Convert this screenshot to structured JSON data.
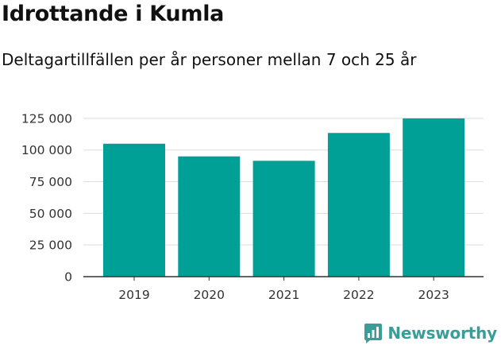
{
  "chart_data": {
    "type": "bar",
    "title": "Idrottande i Kumla",
    "subtitle": "Deltagartillfällen per år personer mellan 7 och 25 år",
    "categories": [
      "2019",
      "2020",
      "2021",
      "2022",
      "2023"
    ],
    "values": [
      105000,
      95000,
      91500,
      113500,
      125000
    ],
    "ylim": [
      0,
      135000
    ],
    "yticks": [
      0,
      25000,
      50000,
      75000,
      100000,
      125000
    ],
    "ytick_labels": [
      "0",
      "25 000",
      "50 000",
      "75 000",
      "100 000",
      "125 000"
    ],
    "grid": true,
    "bar_color": "#00a096"
  },
  "brand": {
    "name": "Newsworthy",
    "icon": "newsworthy-logo-icon",
    "color": "#3a9d97"
  }
}
